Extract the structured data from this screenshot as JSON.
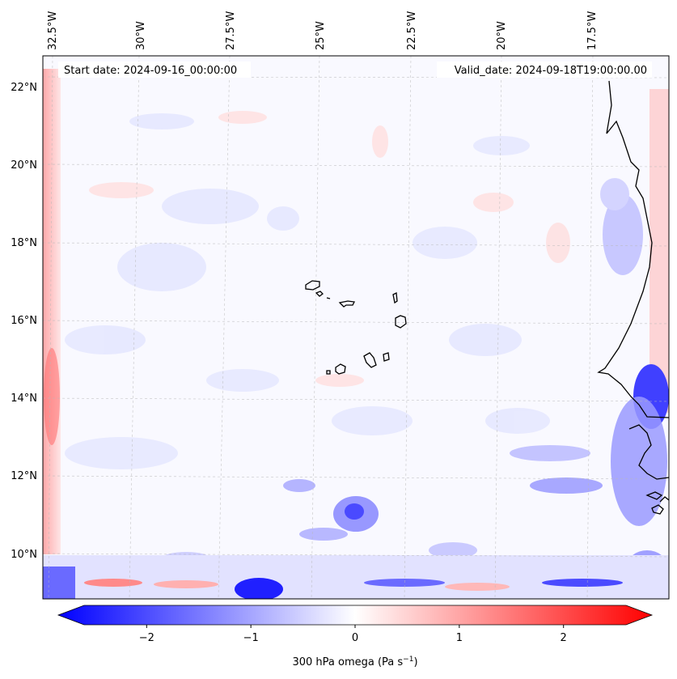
{
  "map": {
    "start_date_label": "Start date: 2024-09-16_00:00:00",
    "valid_date_label": "Valid_date: 2024-09-18T19:00:00.00",
    "lon_labels": [
      "32.5°W",
      "30°W",
      "27.5°W",
      "25°W",
      "22.5°W",
      "20°W",
      "17.5°W"
    ],
    "lat_labels": [
      "22°N",
      "20°N",
      "18°N",
      "16°N",
      "14°N",
      "12°N",
      "10°N"
    ],
    "field": "300 hPa omega",
    "units": "Pa s⁻¹"
  },
  "colorbar": {
    "ticks": [
      "−2",
      "−1",
      "0",
      "1",
      "2"
    ],
    "tick_values": [
      -2,
      -1,
      0,
      1,
      2
    ],
    "range": [
      -2.6,
      2.6
    ],
    "label_text": "300 hPa omega (Pa s",
    "label_exp": "−1",
    "label_close": ")",
    "colors": {
      "negative": "#0000ff",
      "zero": "#ffffff",
      "positive": "#ff0000"
    }
  }
}
